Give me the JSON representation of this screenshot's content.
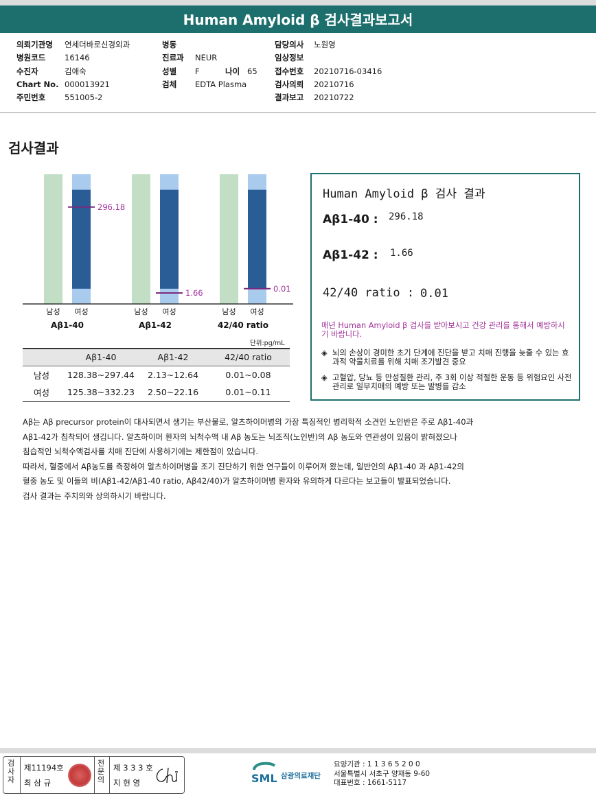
{
  "report": {
    "title": "Human Amyloid β 검사결과보고서"
  },
  "patient_info": {
    "col1": [
      {
        "label": "의뢰기관명",
        "value": "연세더바로신경외과"
      },
      {
        "label": "병원코드",
        "value": "16146"
      },
      {
        "label": "수진자",
        "value": "김애숙"
      },
      {
        "label": "Chart No.",
        "value": "000013921"
      },
      {
        "label": "주민번호",
        "value": "551005-2"
      }
    ],
    "col2": [
      {
        "label": "병동",
        "value": ""
      },
      {
        "label": "진료과",
        "value": "NEUR"
      },
      {
        "label": "성별",
        "value": "F"
      },
      {
        "label": "검체",
        "value": "EDTA Plasma"
      }
    ],
    "age_label": "나이",
    "age_value": "65",
    "col3": [
      {
        "label": "담당의사",
        "value": "노원영"
      },
      {
        "label": "임상정보",
        "value": ""
      },
      {
        "label": "접수번호",
        "value": "20210716-03416"
      },
      {
        "label": "검사의뢰",
        "value": "20210716"
      },
      {
        "label": "결과보고",
        "value": "20210722"
      }
    ]
  },
  "section_title": "검사결과",
  "chart_data": {
    "type": "bar",
    "groups": [
      {
        "name": "Aβ1-40",
        "male_label": "남성",
        "female_label": "여성",
        "male_range": [
          128.38,
          297.44
        ],
        "female_range": [
          125.38,
          332.23
        ],
        "value": 296.18,
        "value_label": "296.18"
      },
      {
        "name": "Aβ1-42",
        "male_label": "남성",
        "female_label": "여성",
        "male_range": [
          2.13,
          12.64
        ],
        "female_range": [
          2.5,
          22.16
        ],
        "value": 1.66,
        "value_label": "1.66"
      },
      {
        "name": "42/40 ratio",
        "male_label": "남성",
        "female_label": "여성",
        "male_range": [
          0.01,
          0.08
        ],
        "female_range": [
          0.01,
          0.11
        ],
        "value": 0.01,
        "value_label": "0.01"
      }
    ],
    "colors": {
      "male_bar": "#c2dec5",
      "female_outer": "#a9cbee",
      "female_range": "#2a5d96",
      "marker": "#7a2a7e",
      "value_text": "#a0309a"
    }
  },
  "units": "단위:pg/mL",
  "ref_table": {
    "headers": [
      "",
      "Aβ1-40",
      "Aβ1-42",
      "42/40 ratio"
    ],
    "rows": [
      [
        "남성",
        "128.38~297.44",
        "2.13~12.64",
        "0.01~0.08"
      ],
      [
        "여성",
        "125.38~332.23",
        "2.50~22.16",
        "0.01~0.11"
      ]
    ]
  },
  "result_box": {
    "title": "Human Amyloid β 검사 결과",
    "items": [
      {
        "label": "Aβ1-40 :",
        "value": "296.18"
      },
      {
        "label": "Aβ1-42 :",
        "value": "1.66"
      },
      {
        "label": "42/40 ratio :",
        "value": "0.01"
      }
    ],
    "note": "매년 Human Amyloid β 검사를 받아보시고 건강 관리를 통해서 예방하시기 바랍니다.",
    "bullets": [
      "뇌의 손상이 경미한 초기 단계에 진단을 받고 치매 진행을 늦출 수 있는 효과적 약물치료를 위해 치매 조기발견 중요",
      "고혈압, 당뇨 등 만성질환 관리, 주 3회 이상 적절한 운동 등 위험요인 사전관리로 일부치매의 예방 또는 발병를 감소"
    ]
  },
  "paragraph": [
    "Aβ는 Aβ precursor protein이 대사되면서 생기는 부산물로, 알츠하이머병의 가장 특징적인 병리학적 소견인 노인반은 주로 Aβ1-40과",
    "Aβ1-42가 침착되어 생깁니다. 알츠하이머 환자의 뇌척수액 내 Aβ 농도는 뇌조직(노인반)의 Aβ 농도와 연관성이 있음이 밝혀졌으나",
    "침습적인 뇌척수액검사를 치매 진단에 사용하기에는 제한점이 있습니다.",
    "따라서, 혈중에서 Aβ농도를 측정하여 알츠하이머병을 조기 진단하기 위한 연구들이 이루어져 왔는데, 일반인의 Aβ1-40 과 Aβ1-42의",
    "혈중 농도 및 이들의 비(Aβ1-42/Aβ1-40 ratio, Aβ42/40)가 알츠하이머병 환자와 유의하게 다르다는 보고들이 발표되었습니다.",
    "검사 결과는 주치의와 상의하시기 바랍니다."
  ],
  "footer": {
    "tester_label": "검사자",
    "tester_no": "제11194호",
    "tester_name": "최 삼 규",
    "specialist_label": "전문의",
    "specialist_no": "제 3 3 3 호",
    "specialist_name": "지 현 영",
    "org_logo": "SML",
    "org_name": "삼광의료재단",
    "addr": [
      "요양기관 : 1 1 3 6 5 2 0 0",
      "서울특별시 서초구 양재동 9-60",
      "대표번호 : 1661-5117"
    ]
  }
}
